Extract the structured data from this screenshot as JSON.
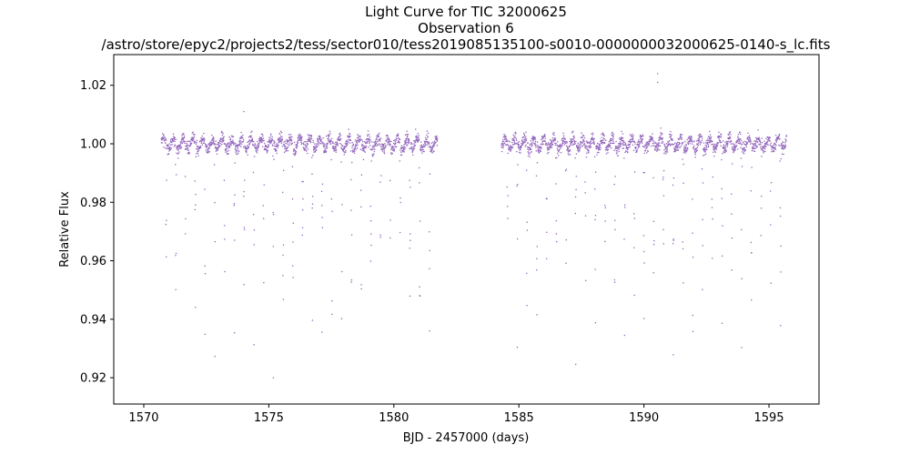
{
  "chart_data": {
    "type": "scatter",
    "title_lines": [
      "Light Curve for TIC 32000625",
      "Observation 6",
      "/astro/store/epyc2/projects2/tess/sector010/tess2019085135100-s0010-0000000032000625-0140-s_lc.fits"
    ],
    "xlabel": "BJD - 2457000 (days)",
    "ylabel": "Relative Flux",
    "xlim": [
      1568.8,
      1597.0
    ],
    "ylim": [
      0.911,
      1.0305
    ],
    "xticks": [
      1570,
      1575,
      1580,
      1585,
      1590,
      1595
    ],
    "xtick_labels": [
      "1570",
      "1575",
      "1580",
      "1585",
      "1590",
      "1595"
    ],
    "yticks": [
      0.92,
      0.94,
      0.96,
      0.98,
      1.0,
      1.02
    ],
    "ytick_labels": [
      "0.92",
      "0.94",
      "0.96",
      "0.98",
      "1.00",
      "1.02"
    ],
    "grid": false,
    "marker_color": "#9467bd",
    "series": [
      {
        "name": "flux",
        "segments": [
          {
            "x_start": 1570.7,
            "x_end": 1581.75
          },
          {
            "x_start": 1584.3,
            "x_end": 1595.7
          }
        ],
        "baseline": 1.0,
        "oscillation_amplitude": 0.003,
        "oscillation_period_days": 0.39,
        "dip_depth_min": 0.918,
        "outlier_points": [
          {
            "x": 1590.55,
            "y": 1.024
          },
          {
            "x": 1590.55,
            "y": 1.021
          },
          {
            "x": 1574.0,
            "y": 1.011
          }
        ]
      }
    ]
  }
}
